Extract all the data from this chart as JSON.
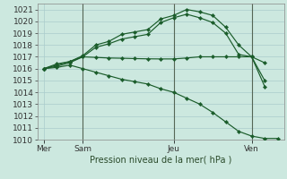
{
  "background_color": "#cce8df",
  "grid_color": "#aacccc",
  "line_color": "#1a5c2a",
  "ylabel_text": "Pression niveau de la mer( hPa )",
  "ylim": [
    1010,
    1021.5
  ],
  "yticks": [
    1010,
    1011,
    1012,
    1013,
    1014,
    1015,
    1016,
    1017,
    1018,
    1019,
    1020,
    1021
  ],
  "xtick_labels": [
    "Mer",
    "Sam",
    "Jeu",
    "Ven"
  ],
  "xtick_positions": [
    0,
    3,
    10,
    16
  ],
  "xlim": [
    -0.5,
    18.5
  ],
  "vlines": [
    3,
    10,
    16
  ],
  "series": [
    {
      "x": [
        0,
        1,
        2,
        3,
        4,
        5,
        6,
        7,
        8,
        9,
        10,
        11,
        12,
        13,
        14,
        15,
        16,
        17
      ],
      "y": [
        1016.0,
        1016.3,
        1016.6,
        1017.1,
        1018.0,
        1018.3,
        1018.9,
        1019.1,
        1019.3,
        1020.2,
        1020.5,
        1021.0,
        1020.8,
        1020.5,
        1019.5,
        1018.0,
        1017.0,
        1014.5
      ]
    },
    {
      "x": [
        0,
        1,
        2,
        3,
        4,
        5,
        6,
        7,
        8,
        9,
        10,
        11,
        12,
        13,
        14,
        15,
        16,
        17
      ],
      "y": [
        1016.0,
        1016.2,
        1016.5,
        1017.0,
        1017.8,
        1018.1,
        1018.5,
        1018.7,
        1018.9,
        1019.9,
        1020.3,
        1020.6,
        1020.3,
        1019.9,
        1019.0,
        1017.2,
        1017.0,
        1015.0
      ]
    },
    {
      "x": [
        0,
        1,
        2,
        3,
        4,
        5,
        6,
        7,
        8,
        9,
        10,
        11,
        12,
        13,
        14,
        15,
        16,
        17
      ],
      "y": [
        1016.0,
        1016.4,
        1016.6,
        1017.0,
        1016.95,
        1016.9,
        1016.88,
        1016.85,
        1016.83,
        1016.82,
        1016.82,
        1016.9,
        1017.0,
        1017.0,
        1017.0,
        1017.0,
        1017.0,
        1016.5
      ]
    },
    {
      "x": [
        0,
        1,
        2,
        3,
        4,
        5,
        6,
        7,
        8,
        9,
        10,
        11,
        12,
        13,
        14,
        15,
        16,
        17,
        18
      ],
      "y": [
        1016.0,
        1016.1,
        1016.3,
        1016.0,
        1015.7,
        1015.4,
        1015.1,
        1014.9,
        1014.7,
        1014.3,
        1014.0,
        1013.5,
        1013.0,
        1012.3,
        1011.5,
        1010.7,
        1010.3,
        1010.1,
        1010.1
      ]
    }
  ],
  "font_size": 6.5,
  "marker_size": 2.2,
  "linewidth": 0.85
}
